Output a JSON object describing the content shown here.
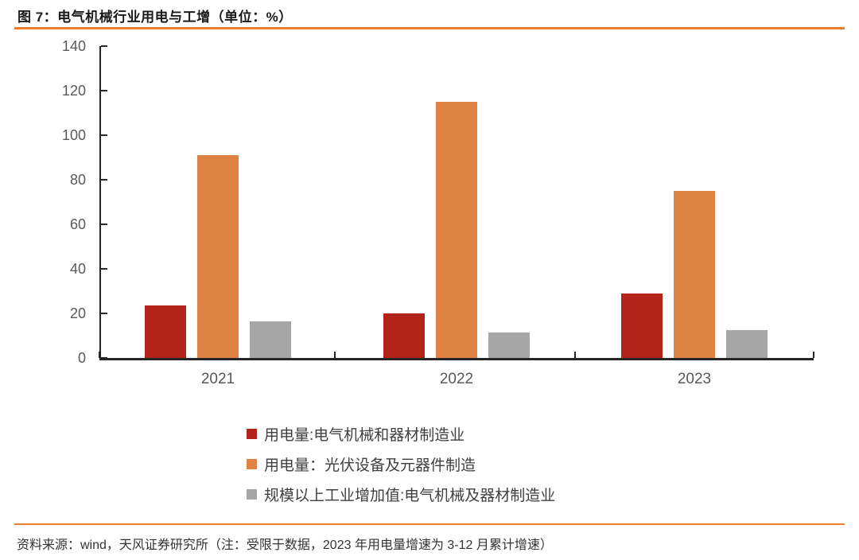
{
  "figure": {
    "title": "图 7：电气机械行业用电与工增（单位：%）",
    "source": "资料来源：wind，天风证券研究所（注：受限于数据，2023 年用电量增速为 3-12 月累计增速）",
    "accent_color": "#ED7D31"
  },
  "chart_data": {
    "type": "bar",
    "categories": [
      "2021",
      "2022",
      "2023"
    ],
    "series": [
      {
        "name": "用电量:电气机械和器材制造业",
        "color": "#B2241A",
        "values": [
          23.5,
          20,
          29
        ]
      },
      {
        "name": "用电量：光伏设备及元器件制造",
        "color": "#DE8344",
        "values": [
          91,
          115,
          75
        ]
      },
      {
        "name": "规模以上工业增加值:电气机械及器材制造业",
        "color": "#A6A6A6",
        "values": [
          16.5,
          11.5,
          12.5
        ]
      }
    ],
    "title": "电气机械行业用电与工增",
    "unit": "%",
    "xlabel": "",
    "ylabel": "",
    "ylim": [
      0,
      140
    ],
    "yticks": [
      0,
      20,
      40,
      60,
      80,
      100,
      120,
      140
    ],
    "grid": false,
    "legend_position": "bottom",
    "colors": {
      "axis_line": "#262626",
      "tick_label": "#595959",
      "legend_text": "#3F3F3F"
    }
  }
}
